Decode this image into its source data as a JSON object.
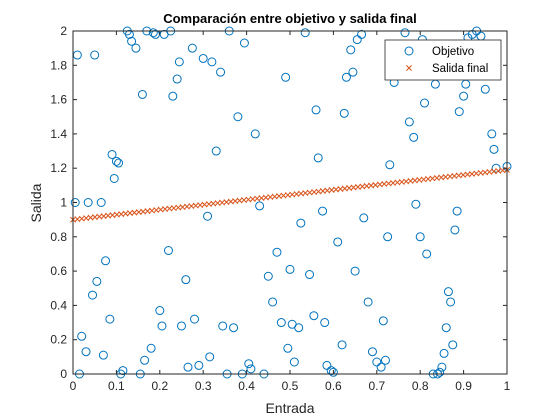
{
  "chart_data": {
    "type": "scatter",
    "title": "Comparación entre objetivo y salida final",
    "xlabel": "Entrada",
    "ylabel": "Salida",
    "xlim": [
      0,
      1
    ],
    "ylim": [
      0,
      2
    ],
    "xticks": [
      "0",
      "0.1",
      "0.2",
      "0.3",
      "0.4",
      "0.5",
      "0.6",
      "0.7",
      "0.8",
      "0.9",
      "1"
    ],
    "yticks": [
      "0",
      "0.2",
      "0.4",
      "0.6",
      "0.8",
      "1",
      "1.2",
      "1.4",
      "1.6",
      "1.8",
      "2"
    ],
    "grid": false,
    "legend_position": "top-right",
    "series": [
      {
        "name": "Objetivo",
        "marker": "circle",
        "color": "#0072BD",
        "points": [
          [
            0.005,
            1.0
          ],
          [
            0.01,
            1.86
          ],
          [
            0.015,
            0.0
          ],
          [
            0.02,
            0.22
          ],
          [
            0.03,
            0.13
          ],
          [
            0.035,
            1.0
          ],
          [
            0.045,
            0.46
          ],
          [
            0.05,
            1.86
          ],
          [
            0.055,
            0.54
          ],
          [
            0.065,
            1.0
          ],
          [
            0.07,
            0.11
          ],
          [
            0.075,
            0.66
          ],
          [
            0.085,
            0.32
          ],
          [
            0.09,
            1.28
          ],
          [
            0.095,
            1.14
          ],
          [
            0.1,
            1.24
          ],
          [
            0.105,
            1.23
          ],
          [
            0.11,
            0.0
          ],
          [
            0.115,
            0.02
          ],
          [
            0.125,
            2.0
          ],
          [
            0.13,
            1.98
          ],
          [
            0.135,
            1.94
          ],
          [
            0.145,
            1.9
          ],
          [
            0.155,
            0.0
          ],
          [
            0.16,
            1.63
          ],
          [
            0.165,
            0.08
          ],
          [
            0.17,
            2.0
          ],
          [
            0.18,
            0.15
          ],
          [
            0.185,
            1.99
          ],
          [
            0.19,
            1.98
          ],
          [
            0.2,
            0.37
          ],
          [
            0.205,
            0.28
          ],
          [
            0.21,
            1.98
          ],
          [
            0.22,
            0.72
          ],
          [
            0.225,
            2.0
          ],
          [
            0.23,
            1.62
          ],
          [
            0.24,
            1.72
          ],
          [
            0.245,
            1.82
          ],
          [
            0.25,
            0.28
          ],
          [
            0.26,
            0.55
          ],
          [
            0.265,
            0.04
          ],
          [
            0.275,
            1.9
          ],
          [
            0.28,
            0.32
          ],
          [
            0.29,
            0.05
          ],
          [
            0.3,
            1.84
          ],
          [
            0.31,
            0.92
          ],
          [
            0.315,
            0.1
          ],
          [
            0.32,
            1.82
          ],
          [
            0.33,
            1.3
          ],
          [
            0.34,
            1.76
          ],
          [
            0.345,
            0.28
          ],
          [
            0.355,
            0.0
          ],
          [
            0.36,
            2.0
          ],
          [
            0.37,
            0.27
          ],
          [
            0.38,
            1.5
          ],
          [
            0.39,
            0.0
          ],
          [
            0.395,
            1.93
          ],
          [
            0.405,
            0.06
          ],
          [
            0.41,
            0.03
          ],
          [
            0.42,
            1.4
          ],
          [
            0.43,
            0.98
          ],
          [
            0.44,
            0.0
          ],
          [
            0.45,
            0.57
          ],
          [
            0.46,
            0.42
          ],
          [
            0.47,
            0.71
          ],
          [
            0.48,
            0.3
          ],
          [
            0.49,
            1.73
          ],
          [
            0.495,
            0.15
          ],
          [
            0.5,
            0.61
          ],
          [
            0.505,
            0.29
          ],
          [
            0.51,
            0.07
          ],
          [
            0.52,
            0.27
          ],
          [
            0.525,
            0.88
          ],
          [
            0.535,
            1.99
          ],
          [
            0.545,
            0.58
          ],
          [
            0.555,
            0.34
          ],
          [
            0.56,
            1.54
          ],
          [
            0.565,
            1.26
          ],
          [
            0.575,
            0.95
          ],
          [
            0.58,
            0.3
          ],
          [
            0.585,
            0.05
          ],
          [
            0.595,
            0.02
          ],
          [
            0.6,
            0.01
          ],
          [
            0.61,
            0.77
          ],
          [
            0.62,
            0.17
          ],
          [
            0.625,
            1.52
          ],
          [
            0.63,
            1.73
          ],
          [
            0.64,
            1.89
          ],
          [
            0.645,
            1.76
          ],
          [
            0.65,
            0.6
          ],
          [
            0.655,
            1.95
          ],
          [
            0.665,
            1.98
          ],
          [
            0.67,
            0.91
          ],
          [
            0.68,
            0.42
          ],
          [
            0.69,
            0.13
          ],
          [
            0.7,
            0.07
          ],
          [
            0.71,
            0.04
          ],
          [
            0.715,
            0.31
          ],
          [
            0.72,
            0.08
          ],
          [
            0.725,
            0.8
          ],
          [
            0.73,
            1.22
          ],
          [
            0.74,
            1.7
          ],
          [
            0.75,
            1.9
          ],
          [
            0.755,
            1.86
          ],
          [
            0.765,
            1.99
          ],
          [
            0.775,
            1.47
          ],
          [
            0.785,
            1.38
          ],
          [
            0.79,
            0.99
          ],
          [
            0.8,
            0.8
          ],
          [
            0.805,
            1.95
          ],
          [
            0.81,
            1.58
          ],
          [
            0.815,
            0.7
          ],
          [
            0.83,
            0.0
          ],
          [
            0.835,
            1.69
          ],
          [
            0.84,
            0.0
          ],
          [
            0.845,
            0.01
          ],
          [
            0.85,
            0.04
          ],
          [
            0.855,
            0.12
          ],
          [
            0.86,
            0.27
          ],
          [
            0.865,
            0.48
          ],
          [
            0.87,
            0.42
          ],
          [
            0.875,
            0.17
          ],
          [
            0.88,
            0.84
          ],
          [
            0.885,
            0.95
          ],
          [
            0.89,
            1.53
          ],
          [
            0.895,
            1.74
          ],
          [
            0.9,
            1.62
          ],
          [
            0.905,
            1.69
          ],
          [
            0.91,
            1.96
          ],
          [
            0.92,
            1.98
          ],
          [
            0.93,
            2.0
          ],
          [
            0.94,
            1.97
          ],
          [
            0.95,
            1.66
          ],
          [
            0.96,
            1.75
          ],
          [
            0.965,
            1.4
          ],
          [
            0.97,
            1.31
          ],
          [
            0.975,
            1.2
          ],
          [
            1.0,
            1.21
          ]
        ]
      },
      {
        "name": "Salida final",
        "marker": "x",
        "color": "#D95319",
        "line": {
          "x_start": 0.0,
          "x_end": 1.0,
          "y_start": 0.9,
          "y_end": 1.19,
          "n_points": 100
        }
      }
    ]
  }
}
